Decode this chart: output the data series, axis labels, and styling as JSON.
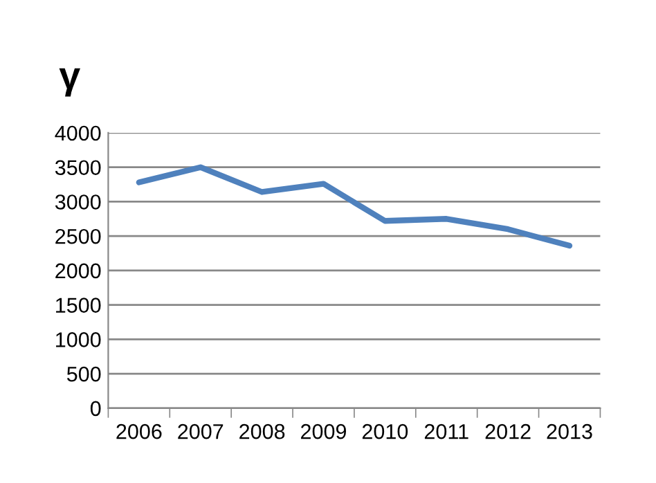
{
  "chart_data": {
    "type": "line",
    "title": "γ",
    "categories": [
      "2006",
      "2007",
      "2008",
      "2009",
      "2010",
      "2011",
      "2012",
      "2013"
    ],
    "series": [
      {
        "color": "#4f81bd",
        "values": [
          3280,
          3500,
          3140,
          3260,
          2720,
          2750,
          2600,
          2360
        ]
      }
    ],
    "ylim": [
      0,
      4000
    ],
    "yticks": [
      0,
      500,
      1000,
      1500,
      2000,
      2500,
      3000,
      3500,
      4000
    ],
    "grid": "y",
    "marker": "none",
    "line_style": "solid"
  }
}
